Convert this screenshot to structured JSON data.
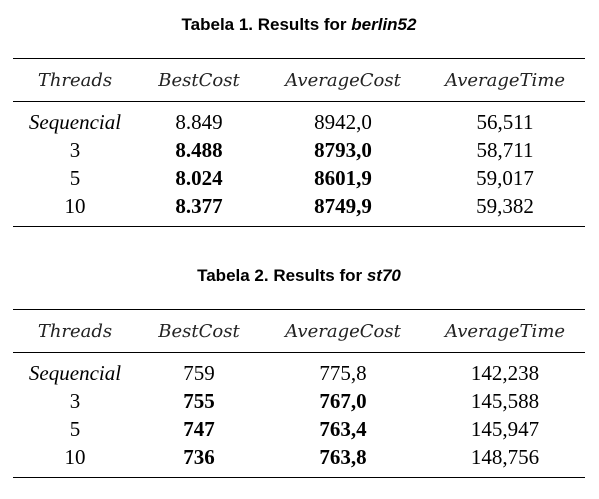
{
  "tables": [
    {
      "caption_prefix": "Tabela 1. Results for ",
      "caption_name": "berlin52",
      "headers": [
        "Threads",
        "BestCost",
        "AverageCost",
        "AverageTime"
      ],
      "rows": [
        {
          "threads": "Sequencial",
          "best_cost": "8.849",
          "average_cost": "8942,0",
          "average_time": "56,511"
        },
        {
          "threads": "3",
          "best_cost": "8.488",
          "average_cost": "8793,0",
          "average_time": "58,711"
        },
        {
          "threads": "5",
          "best_cost": "8.024",
          "average_cost": "8601,9",
          "average_time": "59,017"
        },
        {
          "threads": "10",
          "best_cost": "8.377",
          "average_cost": "8749,9",
          "average_time": "59,382"
        }
      ]
    },
    {
      "caption_prefix": "Tabela 2. Results for ",
      "caption_name": "st70",
      "headers": [
        "Threads",
        "BestCost",
        "AverageCost",
        "AverageTime"
      ],
      "rows": [
        {
          "threads": "Sequencial",
          "best_cost": "759",
          "average_cost": "775,8",
          "average_time": "142,238"
        },
        {
          "threads": "3",
          "best_cost": "755",
          "average_cost": "767,0",
          "average_time": "145,588"
        },
        {
          "threads": "5",
          "best_cost": "747",
          "average_cost": "763,4",
          "average_time": "145,947"
        },
        {
          "threads": "10",
          "best_cost": "736",
          "average_cost": "763,8",
          "average_time": "148,756"
        }
      ]
    }
  ]
}
